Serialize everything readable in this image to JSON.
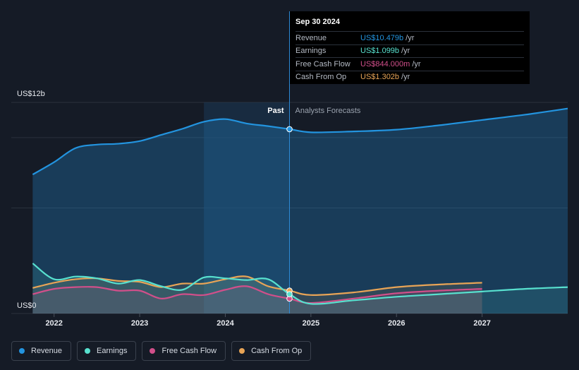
{
  "chart_data": {
    "type": "line",
    "title": "",
    "y_axis_labels": [
      "US$12b",
      "US$0"
    ],
    "ylim": [
      0,
      12
    ],
    "y_unit": "US$b",
    "x_ticks": [
      "2022",
      "2023",
      "2024",
      "2025",
      "2026",
      "2027"
    ],
    "x_tick_values": [
      2022,
      2023,
      2024,
      2025,
      2026,
      2027
    ],
    "xlim": [
      2021.5,
      2028.0
    ],
    "divider_x": 2024.75,
    "shade_start_x": 2023.75,
    "past_label": "Past",
    "forecast_label": "Analysts Forecasts",
    "series": [
      {
        "name": "Revenue",
        "color": "#2394df",
        "fill": true,
        "x": [
          2021.75,
          2022.0,
          2022.25,
          2022.5,
          2022.75,
          2023.0,
          2023.25,
          2023.5,
          2023.75,
          2024.0,
          2024.25,
          2024.5,
          2024.75,
          2025.0,
          2025.5,
          2026.0,
          2026.5,
          2027.0,
          2027.5,
          2028.0
        ],
        "values": [
          7.9,
          8.6,
          9.4,
          9.6,
          9.65,
          9.8,
          10.15,
          10.5,
          10.9,
          11.05,
          10.8,
          10.65,
          10.479,
          10.3,
          10.35,
          10.45,
          10.7,
          11.0,
          11.3,
          11.65
        ]
      },
      {
        "name": "Earnings",
        "color": "#58e1cf",
        "fill": false,
        "x": [
          2021.75,
          2022.0,
          2022.25,
          2022.5,
          2022.75,
          2023.0,
          2023.25,
          2023.5,
          2023.75,
          2024.0,
          2024.25,
          2024.5,
          2024.75,
          2025.0,
          2025.5,
          2026.0,
          2026.5,
          2027.0,
          2027.5,
          2028.0
        ],
        "values": [
          2.85,
          1.95,
          2.1,
          2.0,
          1.7,
          1.9,
          1.55,
          1.35,
          2.05,
          2.0,
          1.9,
          1.95,
          1.099,
          0.55,
          0.75,
          0.95,
          1.1,
          1.25,
          1.4,
          1.5
        ]
      },
      {
        "name": "Free Cash Flow",
        "color": "#d14f8a",
        "fill": false,
        "x": [
          2021.75,
          2022.0,
          2022.25,
          2022.5,
          2022.75,
          2023.0,
          2023.25,
          2023.5,
          2023.75,
          2024.0,
          2024.25,
          2024.5,
          2024.75,
          2025.0,
          2025.5,
          2026.0,
          2026.5,
          2027.0
        ],
        "values": [
          1.1,
          1.4,
          1.5,
          1.5,
          1.3,
          1.3,
          0.85,
          1.1,
          1.05,
          1.35,
          1.55,
          1.1,
          0.844,
          0.6,
          0.85,
          1.15,
          1.3,
          1.4
        ]
      },
      {
        "name": "Cash From Op",
        "color": "#e8a456",
        "fill": false,
        "x": [
          2021.75,
          2022.0,
          2022.25,
          2022.5,
          2022.75,
          2023.0,
          2023.25,
          2023.5,
          2023.75,
          2024.0,
          2024.25,
          2024.5,
          2024.75,
          2025.0,
          2025.5,
          2026.0,
          2026.5,
          2027.0
        ],
        "values": [
          1.45,
          1.75,
          1.95,
          2.0,
          1.85,
          1.8,
          1.5,
          1.7,
          1.7,
          1.95,
          2.1,
          1.55,
          1.302,
          1.05,
          1.2,
          1.5,
          1.65,
          1.75
        ]
      }
    ]
  },
  "tooltip": {
    "date": "Sep 30 2024",
    "rows": [
      {
        "label": "Revenue",
        "value": "US$10.479b",
        "unit": "/yr",
        "color": "#2394df"
      },
      {
        "label": "Earnings",
        "value": "US$1.099b",
        "unit": "/yr",
        "color": "#58e1cf"
      },
      {
        "label": "Free Cash Flow",
        "value": "US$844.000m",
        "unit": "/yr",
        "color": "#d14f8a"
      },
      {
        "label": "Cash From Op",
        "value": "US$1.302b",
        "unit": "/yr",
        "color": "#e8a456"
      }
    ]
  },
  "legend": [
    {
      "label": "Revenue",
      "color": "#2394df"
    },
    {
      "label": "Earnings",
      "color": "#58e1cf"
    },
    {
      "label": "Free Cash Flow",
      "color": "#d14f8a"
    },
    {
      "label": "Cash From Op",
      "color": "#e8a456"
    }
  ]
}
